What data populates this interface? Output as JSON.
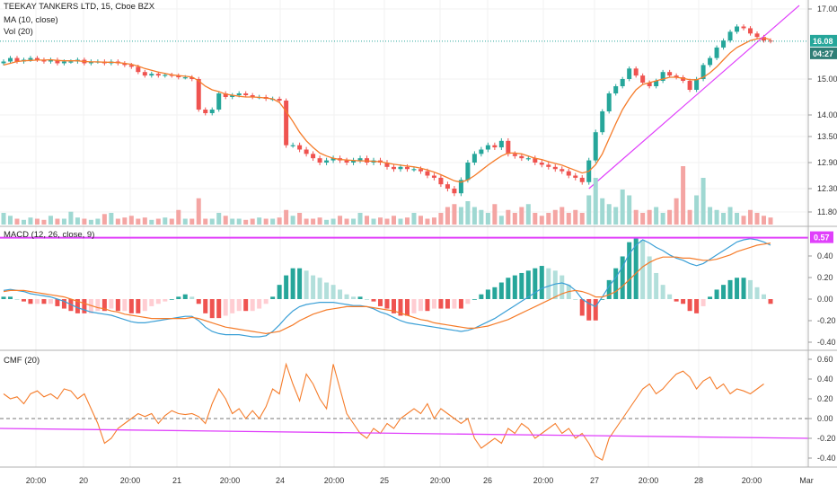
{
  "legend": {
    "main_title": "TEEKAY TANKERS LTD, 15, Cboe BZX",
    "ma_label": "MA (10, close)",
    "vol_label": "Vol (20)",
    "macd_label": "MACD (12, 26, close, 9)",
    "cmf_label": "CMF (20)"
  },
  "colors": {
    "up": "#26a69a",
    "down": "#ef5350",
    "ma": "#f57c2a",
    "macd": "#3a9fd6",
    "signal": "#f57c2a",
    "trendline": "#e040fb",
    "cmf": "#f57c2a",
    "price_badge": "#26a69a",
    "macd_badge": "#e040fb"
  },
  "price_badge": {
    "price": "16.08",
    "countdown": "04:27"
  },
  "macd_badge": "0.57",
  "chart_data": [
    {
      "type": "candlestick",
      "title": "TEEKAY TANKERS LTD, 15, Cboe BZX",
      "y_ticks": [
        "17.00",
        "15.00",
        "14.00",
        "13.50",
        "12.90",
        "12.30",
        "11.80"
      ],
      "x_ticks": [
        "20:00",
        "20",
        "20:00",
        "21",
        "20:00",
        "24",
        "20:00",
        "25",
        "20:00",
        "26",
        "20:00",
        "27",
        "20:00",
        "28",
        "20:00",
        "Mar"
      ],
      "last_price": 16.08,
      "close": [
        15.5,
        15.6,
        15.5,
        15.55,
        15.6,
        15.55,
        15.5,
        15.55,
        15.45,
        15.5,
        15.5,
        15.55,
        15.45,
        15.5,
        15.5,
        15.45,
        15.5,
        15.45,
        15.4,
        15.35,
        15.2,
        15.1,
        15.15,
        15.1,
        15.12,
        15.1,
        15.05,
        15.05,
        15.0,
        14.15,
        14.05,
        14.15,
        14.6,
        14.5,
        14.55,
        14.6,
        14.55,
        14.5,
        14.5,
        14.45,
        14.45,
        14.4,
        13.3,
        13.3,
        13.2,
        13.1,
        13.0,
        12.9,
        12.95,
        13.0,
        12.95,
        12.9,
        12.95,
        13.0,
        12.9,
        12.95,
        12.9,
        12.8,
        12.75,
        12.8,
        12.75,
        12.75,
        12.7,
        12.6,
        12.55,
        12.4,
        12.3,
        12.2,
        12.5,
        12.9,
        13.1,
        13.2,
        13.3,
        13.25,
        13.4,
        13.1,
        13.05,
        13.0,
        13.0,
        12.9,
        12.85,
        12.8,
        12.75,
        12.7,
        12.6,
        12.55,
        12.45,
        12.95,
        13.6,
        14.1,
        14.6,
        14.8,
        15.0,
        15.3,
        15.1,
        14.9,
        14.8,
        14.95,
        15.2,
        15.1,
        15.05,
        14.95,
        14.7,
        15.0,
        15.4,
        15.6,
        15.9,
        16.1,
        16.35,
        16.5,
        16.45,
        16.3,
        16.2,
        16.1,
        16.08
      ],
      "ma10": [
        15.4,
        15.45,
        15.5,
        15.52,
        15.53,
        15.54,
        15.54,
        15.55,
        15.53,
        15.52,
        15.52,
        15.52,
        15.5,
        15.49,
        15.49,
        15.48,
        15.48,
        15.47,
        15.45,
        15.42,
        15.37,
        15.3,
        15.25,
        15.2,
        15.16,
        15.12,
        15.1,
        15.08,
        15.06,
        14.95,
        14.8,
        14.7,
        14.65,
        14.58,
        14.55,
        14.52,
        14.5,
        14.5,
        14.49,
        14.47,
        14.45,
        14.35,
        14.1,
        13.85,
        13.6,
        13.4,
        13.25,
        13.12,
        13.05,
        13.0,
        12.97,
        12.96,
        12.95,
        12.94,
        12.94,
        12.93,
        12.92,
        12.89,
        12.86,
        12.84,
        12.82,
        12.8,
        12.77,
        12.73,
        12.68,
        12.62,
        12.55,
        12.48,
        12.45,
        12.5,
        12.6,
        12.72,
        12.84,
        12.95,
        13.05,
        13.12,
        13.12,
        13.1,
        13.05,
        13.0,
        12.97,
        12.92,
        12.88,
        12.84,
        12.78,
        12.72,
        12.66,
        12.7,
        12.85,
        13.1,
        13.45,
        13.8,
        14.15,
        14.45,
        14.7,
        14.85,
        14.9,
        14.95,
        15.0,
        15.05,
        15.05,
        15.02,
        14.98,
        14.98,
        15.05,
        15.18,
        15.35,
        15.55,
        15.75,
        15.9,
        16.0,
        16.1,
        16.15,
        16.18,
        16.12
      ],
      "volume_relative": [
        0.2,
        0.15,
        0.1,
        0.08,
        0.12,
        0.1,
        0.08,
        0.15,
        0.1,
        0.1,
        0.22,
        0.12,
        0.1,
        0.08,
        0.1,
        0.18,
        0.2,
        0.1,
        0.12,
        0.15,
        0.1,
        0.12,
        0.08,
        0.1,
        0.12,
        0.1,
        0.25,
        0.1,
        0.1,
        0.45,
        0.1,
        0.1,
        0.2,
        0.15,
        0.1,
        0.1,
        0.08,
        0.1,
        0.12,
        0.1,
        0.1,
        0.12,
        0.25,
        0.15,
        0.2,
        0.1,
        0.1,
        0.12,
        0.08,
        0.1,
        0.15,
        0.1,
        0.1,
        0.2,
        0.15,
        0.1,
        0.12,
        0.1,
        0.15,
        0.1,
        0.12,
        0.2,
        0.15,
        0.1,
        0.12,
        0.2,
        0.3,
        0.35,
        0.3,
        0.4,
        0.3,
        0.25,
        0.2,
        0.35,
        0.15,
        0.25,
        0.2,
        0.3,
        0.35,
        0.2,
        0.15,
        0.2,
        0.25,
        0.3,
        0.2,
        0.25,
        0.2,
        0.5,
        0.8,
        0.45,
        0.35,
        0.3,
        0.6,
        0.5,
        0.25,
        0.2,
        0.25,
        0.3,
        0.2,
        0.25,
        0.45,
        1.0,
        0.25,
        0.5,
        0.8,
        0.3,
        0.25,
        0.2,
        0.3,
        0.2,
        0.15,
        0.25,
        0.2,
        0.15,
        0.12
      ]
    },
    {
      "type": "line",
      "title": "MACD (12, 26, close, 9)",
      "y_ticks": [
        "0.40",
        "0.20",
        "0.00",
        "-0.20",
        "-0.40"
      ],
      "macd": [
        0.08,
        0.09,
        0.08,
        0.07,
        0.05,
        0.04,
        0.03,
        0.02,
        0.0,
        -0.02,
        -0.05,
        -0.08,
        -0.1,
        -0.12,
        -0.13,
        -0.14,
        -0.15,
        -0.17,
        -0.19,
        -0.21,
        -0.22,
        -0.22,
        -0.21,
        -0.2,
        -0.19,
        -0.18,
        -0.17,
        -0.16,
        -0.16,
        -0.2,
        -0.26,
        -0.3,
        -0.32,
        -0.33,
        -0.33,
        -0.33,
        -0.34,
        -0.35,
        -0.35,
        -0.34,
        -0.3,
        -0.24,
        -0.17,
        -0.11,
        -0.07,
        -0.05,
        -0.04,
        -0.03,
        -0.03,
        -0.03,
        -0.04,
        -0.05,
        -0.06,
        -0.06,
        -0.07,
        -0.09,
        -0.12,
        -0.14,
        -0.17,
        -0.2,
        -0.22,
        -0.23,
        -0.24,
        -0.25,
        -0.26,
        -0.27,
        -0.28,
        -0.29,
        -0.3,
        -0.29,
        -0.27,
        -0.24,
        -0.21,
        -0.18,
        -0.14,
        -0.1,
        -0.06,
        -0.02,
        0.02,
        0.06,
        0.1,
        0.12,
        0.14,
        0.15,
        0.13,
        0.08,
        0.0,
        -0.04,
        -0.07,
        0.02,
        0.12,
        0.2,
        0.3,
        0.42,
        0.5,
        0.55,
        0.52,
        0.48,
        0.45,
        0.41,
        0.38,
        0.36,
        0.33,
        0.31,
        0.33,
        0.37,
        0.41,
        0.45,
        0.49,
        0.53,
        0.55,
        0.56,
        0.55,
        0.53,
        0.5
      ],
      "signal": [
        0.07,
        0.08,
        0.08,
        0.08,
        0.07,
        0.06,
        0.05,
        0.04,
        0.03,
        0.02,
        0.0,
        -0.02,
        -0.04,
        -0.06,
        -0.08,
        -0.09,
        -0.11,
        -0.12,
        -0.14,
        -0.15,
        -0.16,
        -0.17,
        -0.18,
        -0.18,
        -0.18,
        -0.18,
        -0.18,
        -0.18,
        -0.17,
        -0.18,
        -0.2,
        -0.22,
        -0.24,
        -0.26,
        -0.27,
        -0.28,
        -0.29,
        -0.3,
        -0.31,
        -0.32,
        -0.31,
        -0.3,
        -0.27,
        -0.24,
        -0.2,
        -0.17,
        -0.14,
        -0.12,
        -0.1,
        -0.09,
        -0.08,
        -0.07,
        -0.07,
        -0.07,
        -0.07,
        -0.08,
        -0.09,
        -0.1,
        -0.11,
        -0.13,
        -0.15,
        -0.17,
        -0.19,
        -0.2,
        -0.22,
        -0.23,
        -0.24,
        -0.25,
        -0.26,
        -0.27,
        -0.27,
        -0.26,
        -0.25,
        -0.23,
        -0.21,
        -0.19,
        -0.16,
        -0.13,
        -0.1,
        -0.07,
        -0.04,
        -0.01,
        0.02,
        0.05,
        0.07,
        0.08,
        0.07,
        0.05,
        0.02,
        0.02,
        0.04,
        0.07,
        0.12,
        0.18,
        0.24,
        0.3,
        0.34,
        0.37,
        0.39,
        0.39,
        0.39,
        0.38,
        0.38,
        0.37,
        0.36,
        0.36,
        0.37,
        0.39,
        0.41,
        0.44,
        0.46,
        0.48,
        0.5,
        0.51,
        0.52
      ]
    },
    {
      "type": "line",
      "title": "CMF (20)",
      "y_ticks": [
        "0.60",
        "0.40",
        "0.20",
        "0.00",
        "-0.20",
        "-0.40"
      ],
      "cmf": [
        0.25,
        0.2,
        0.22,
        0.15,
        0.25,
        0.28,
        0.22,
        0.25,
        0.2,
        0.3,
        0.28,
        0.2,
        0.25,
        0.1,
        -0.05,
        -0.25,
        -0.2,
        -0.1,
        -0.05,
        0.0,
        0.05,
        0.02,
        0.05,
        -0.05,
        0.03,
        0.08,
        0.05,
        0.04,
        0.05,
        0.02,
        -0.05,
        0.15,
        0.3,
        0.2,
        0.05,
        0.1,
        0.0,
        0.08,
        0.0,
        0.12,
        0.3,
        0.25,
        0.55,
        0.35,
        0.18,
        0.45,
        0.35,
        0.2,
        0.1,
        0.55,
        0.3,
        0.05,
        -0.05,
        -0.15,
        -0.2,
        -0.1,
        -0.15,
        -0.05,
        -0.1,
        0.0,
        0.05,
        0.1,
        0.05,
        0.15,
        0.0,
        0.1,
        0.05,
        0.0,
        -0.05,
        0.0,
        -0.2,
        -0.3,
        -0.25,
        -0.2,
        -0.25,
        -0.1,
        -0.15,
        -0.05,
        -0.1,
        -0.2,
        -0.15,
        -0.1,
        -0.05,
        -0.15,
        -0.1,
        -0.2,
        -0.15,
        -0.25,
        -0.38,
        -0.42,
        -0.2,
        -0.1,
        0.0,
        0.1,
        0.2,
        0.3,
        0.35,
        0.25,
        0.3,
        0.38,
        0.45,
        0.48,
        0.42,
        0.3,
        0.38,
        0.42,
        0.3,
        0.35,
        0.25,
        0.3,
        0.28,
        0.25,
        0.3,
        0.35
      ],
      "zero_line": 0.0
    }
  ]
}
